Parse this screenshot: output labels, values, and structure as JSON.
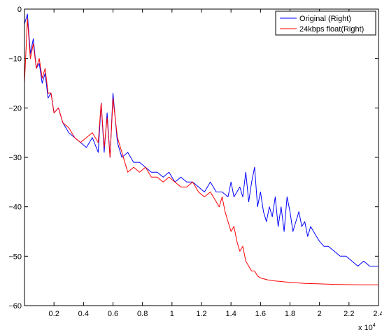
{
  "chart_data": {
    "type": "line",
    "title": "",
    "xlabel": "",
    "ylabel": "",
    "xlim": [
      0,
      24000
    ],
    "ylim": [
      -60,
      0
    ],
    "x_ticks": [
      2000,
      4000,
      6000,
      8000,
      10000,
      12000,
      14000,
      16000,
      18000,
      20000,
      22000,
      24000
    ],
    "x_tick_labels": [
      "0.2",
      "0.4",
      "0.6",
      "0.8",
      "1",
      "1.2",
      "1.4",
      "1.6",
      "1.8",
      "2",
      "2.2",
      "2.4"
    ],
    "x_multiplier": "x 10",
    "x_multiplier_exp": "4",
    "y_ticks": [
      0,
      -10,
      -20,
      -30,
      -40,
      -50,
      -60
    ],
    "y_tick_labels": [
      "0",
      "−10",
      "−20",
      "−30",
      "−40",
      "−50",
      "−60"
    ],
    "grid": false,
    "legend_position": "top-right",
    "series": [
      {
        "name": "Original (Right)",
        "color": "#0000ff",
        "x": [
          0,
          200,
          400,
          600,
          800,
          1000,
          1200,
          1400,
          1600,
          1800,
          2000,
          2300,
          2600,
          3000,
          3400,
          3800,
          4200,
          4600,
          5000,
          5200,
          5400,
          5600,
          5800,
          6000,
          6300,
          6600,
          7000,
          7400,
          7800,
          8200,
          8600,
          9000,
          9400,
          9800,
          10200,
          10600,
          11000,
          11400,
          11800,
          12200,
          12600,
          13000,
          13400,
          13800,
          14000,
          14200,
          14400,
          14600,
          14800,
          15000,
          15200,
          15400,
          15600,
          15800,
          16000,
          16200,
          16400,
          16600,
          16800,
          17000,
          17200,
          17400,
          17600,
          17800,
          18000,
          18200,
          18400,
          18600,
          18800,
          19000,
          19200,
          19400,
          19600,
          19800,
          20000,
          20300,
          20600,
          21000,
          21400,
          21800,
          22200,
          22600,
          23000,
          23400,
          23800,
          24000
        ],
        "y": [
          -3,
          -1,
          -9,
          -6,
          -12,
          -11,
          -15,
          -13,
          -18,
          -17,
          -21,
          -20,
          -23,
          -25,
          -26,
          -27,
          -28,
          -26,
          -29,
          -19,
          -29,
          -21,
          -30,
          -17,
          -27,
          -30,
          -29,
          -31,
          -31,
          -32,
          -33,
          -33,
          -34,
          -33,
          -35,
          -34,
          -35,
          -35,
          -36,
          -37,
          -35,
          -37,
          -37,
          -38,
          -35,
          -38,
          -37,
          -36,
          -38,
          -33,
          -39,
          -35,
          -32,
          -40,
          -37,
          -41,
          -43,
          -40,
          -42,
          -38,
          -44,
          -40,
          -45,
          -38,
          -41,
          -45,
          -43,
          -41,
          -44,
          -43,
          -46,
          -44,
          -45,
          -46,
          -47,
          -48,
          -48,
          -49,
          -50,
          -50,
          -51,
          -52,
          -51,
          -52,
          -52,
          -52
        ]
      },
      {
        "name": "24kbps float(Right)",
        "color": "#ff0000",
        "x": [
          0,
          200,
          400,
          600,
          800,
          1000,
          1200,
          1400,
          1600,
          1800,
          2000,
          2300,
          2600,
          3000,
          3400,
          3800,
          4200,
          4600,
          5000,
          5200,
          5400,
          5600,
          5800,
          6000,
          6300,
          6600,
          7000,
          7400,
          7800,
          8200,
          8600,
          9000,
          9400,
          9800,
          10200,
          10600,
          11000,
          11400,
          11800,
          12200,
          12600,
          13000,
          13200,
          13400,
          13600,
          13800,
          14000,
          14200,
          14400,
          14600,
          14800,
          15000,
          15200,
          15400,
          15600,
          15800,
          16000,
          16500,
          17000,
          18000,
          19000,
          20000,
          21000,
          22000,
          23000,
          24000
        ],
        "y": [
          -15,
          -2,
          -10,
          -7,
          -12,
          -10,
          -14,
          -12,
          -17,
          -17,
          -21,
          -20,
          -23,
          -24,
          -26,
          -27,
          -26,
          -25,
          -27,
          -19,
          -28,
          -22,
          -30,
          -18,
          -26,
          -29,
          -33,
          -32,
          -33,
          -32,
          -34,
          -34,
          -35,
          -34,
          -35,
          -36,
          -36,
          -35,
          -37,
          -38,
          -37,
          -39,
          -40,
          -38,
          -41,
          -43,
          -45,
          -44,
          -47,
          -49,
          -48,
          -51,
          -52,
          -53,
          -53,
          -54,
          -54.4,
          -54.8,
          -55,
          -55.3,
          -55.5,
          -55.6,
          -55.7,
          -55.75,
          -55.8,
          -55.8
        ]
      }
    ]
  }
}
